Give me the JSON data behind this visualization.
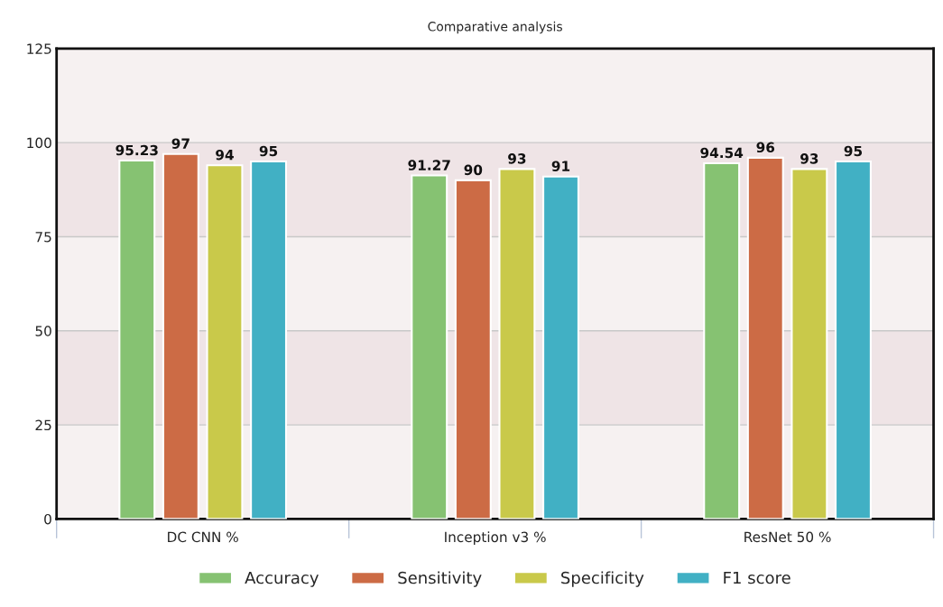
{
  "chart_data": {
    "type": "bar",
    "title": "Comparative analysis",
    "categories": [
      "DC CNN %",
      "Inception v3 %",
      "ResNet 50 %"
    ],
    "series": [
      {
        "name": "Accuracy",
        "color": "#86c272",
        "values": [
          95.23,
          91.27,
          94.54
        ]
      },
      {
        "name": "Sensitivity",
        "color": "#cc6b45",
        "values": [
          97,
          90,
          96
        ]
      },
      {
        "name": "Specificity",
        "color": "#c9c94a",
        "values": [
          94,
          93,
          93
        ]
      },
      {
        "name": "F1 score",
        "color": "#41b0c4",
        "values": [
          95,
          91,
          95
        ]
      }
    ],
    "ylim": [
      0,
      125
    ],
    "yticks": [
      0,
      25,
      50,
      75,
      100,
      125
    ],
    "grid": "y",
    "data_labels": true,
    "legend": "bottom",
    "bands": [
      {
        "axis": "y",
        "from": 25,
        "to": 50,
        "color": "#efe4e6"
      },
      {
        "axis": "y",
        "from": 75,
        "to": 100,
        "color": "#efe4e6"
      }
    ]
  }
}
